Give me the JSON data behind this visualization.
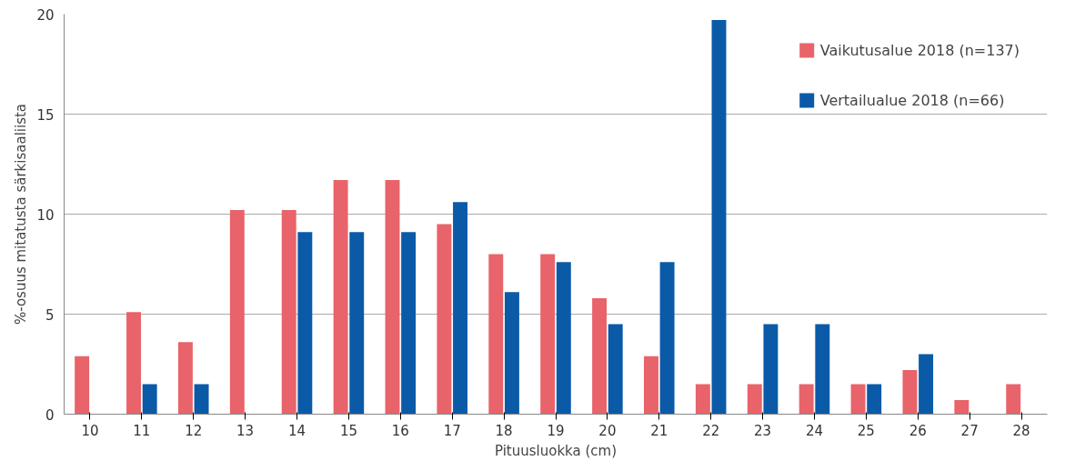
{
  "chart_data": {
    "type": "bar",
    "xlabel": "Pituusluokka (cm)",
    "ylabel": "%-osuus mitatusta särkisaaliista",
    "categories": [
      "10",
      "11",
      "12",
      "13",
      "14",
      "15",
      "16",
      "17",
      "18",
      "19",
      "20",
      "21",
      "22",
      "23",
      "24",
      "25",
      "26",
      "27",
      "28"
    ],
    "series": [
      {
        "name": "Vaikutusalue 2018 (n=137)",
        "color": "#e8636a",
        "values": [
          2.9,
          5.1,
          3.6,
          10.2,
          10.2,
          11.7,
          11.7,
          9.5,
          8.0,
          8.0,
          5.8,
          2.9,
          1.5,
          1.5,
          1.5,
          1.5,
          2.2,
          0.7,
          1.5
        ]
      },
      {
        "name": "Vertailualue 2018 (n=66)",
        "color": "#0a5aa8",
        "values": [
          0,
          1.5,
          1.5,
          0,
          9.1,
          9.1,
          9.1,
          10.6,
          6.1,
          7.6,
          4.5,
          7.6,
          19.7,
          4.5,
          4.5,
          1.5,
          3.0,
          0,
          0
        ]
      }
    ],
    "ylim": [
      0,
      20
    ],
    "yticks": [
      0,
      5,
      10,
      15,
      20
    ],
    "grid": "y",
    "legend": "right"
  }
}
